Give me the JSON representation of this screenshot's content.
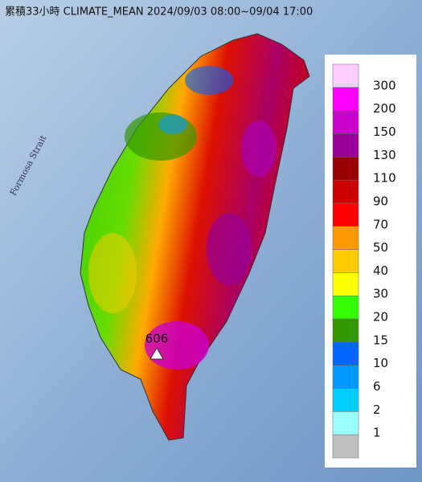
{
  "title": "累積33小時 CLIMATE_MEAN 2024/09/03 08:00~09/04 17:00",
  "strait_label": "Formosa Strait",
  "max_label": "606",
  "legend": {
    "labels": [
      300,
      200,
      150,
      130,
      110,
      90,
      70,
      50,
      40,
      30,
      20,
      15,
      10,
      6,
      2,
      1
    ],
    "colors": [
      "#ffccff",
      "#ff00ff",
      "#cc00cc",
      "#990099",
      "#990000",
      "#cc0000",
      "#ff0000",
      "#ff9900",
      "#ffcc00",
      "#ffff00",
      "#33ff00",
      "#339900",
      "#0066ff",
      "#0099ff",
      "#00ccff",
      "#99ffff",
      "#c0c0c0"
    ]
  }
}
